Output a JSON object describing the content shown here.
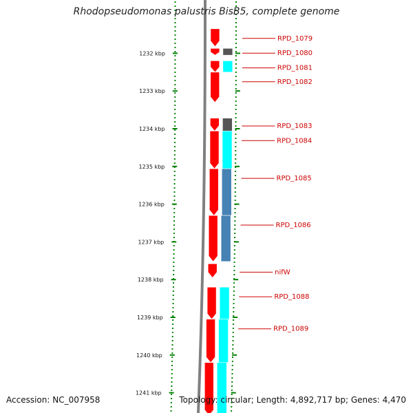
{
  "title": "Rhodopseudomonas palustris BisB5, complete genome",
  "axis_unit": "kbp",
  "ticks": [
    {
      "kbp": 1232,
      "label": "1232 kbp"
    },
    {
      "kbp": 1233,
      "label": "1233 kbp"
    },
    {
      "kbp": 1234,
      "label": "1234 kbp"
    },
    {
      "kbp": 1235,
      "label": "1235 kbp"
    },
    {
      "kbp": 1236,
      "label": "1236 kbp"
    },
    {
      "kbp": 1237,
      "label": "1237 kbp"
    },
    {
      "kbp": 1238,
      "label": "1238 kbp"
    },
    {
      "kbp": 1239,
      "label": "1239 kbp"
    },
    {
      "kbp": 1240,
      "label": "1240 kbp"
    },
    {
      "kbp": 1241,
      "label": "1241 kbp"
    }
  ],
  "colors": {
    "gene": "#ff0000",
    "category_cyan": "#00ffff",
    "category_gray": "#555555",
    "category_blue": "#4682b4",
    "label": "#cc0000",
    "tick": "#008000",
    "backbone": "#808080"
  },
  "genes": [
    {
      "name": "RPD_1079",
      "start": 1231.35,
      "end": 1231.82,
      "category": "none"
    },
    {
      "name": "RPD_1080",
      "start": 1231.87,
      "end": 1232.05,
      "category": "gray"
    },
    {
      "name": "RPD_1081",
      "start": 1232.2,
      "end": 1232.5,
      "category": "cyan"
    },
    {
      "name": "RPD_1082",
      "start": 1232.5,
      "end": 1233.3,
      "category": "none"
    },
    {
      "name": "RPD_1083",
      "start": 1233.72,
      "end": 1234.06,
      "category": "gray"
    },
    {
      "name": "RPD_1084",
      "start": 1234.06,
      "end": 1235.06,
      "category": "cyan"
    },
    {
      "name": "RPD_1085",
      "start": 1235.06,
      "end": 1236.3,
      "category": "blue"
    },
    {
      "name": "RPD_1086",
      "start": 1236.3,
      "end": 1237.52,
      "category": "blue"
    },
    {
      "name": "nifW",
      "start": 1237.58,
      "end": 1237.95,
      "category": "none"
    },
    {
      "name": "RPD_1088",
      "start": 1238.2,
      "end": 1239.05,
      "category": "cyan"
    },
    {
      "name": "RPD_1089",
      "start": 1239.05,
      "end": 1240.2,
      "category": "cyan"
    },
    {
      "name": "",
      "start": 1240.2,
      "end": 1241.6,
      "category": "cyan"
    }
  ],
  "footer": {
    "accession": "Accession: NC_007958",
    "summary": "Topology: circular; Length: 4,892,717 bp; Genes: 4,470"
  }
}
